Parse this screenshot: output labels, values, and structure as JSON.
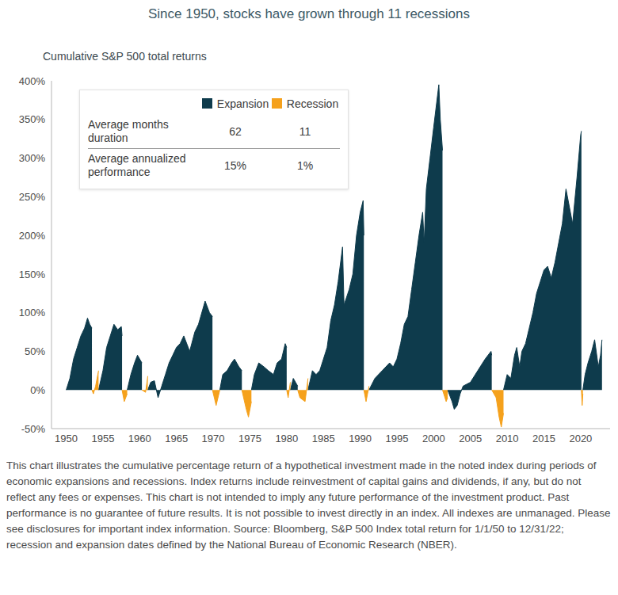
{
  "chart_data": {
    "type": "area",
    "title": "Since 1950, stocks have grown through 11 recessions",
    "subtitle": "Cumulative S&P 500 total returns",
    "table": {
      "rows": [
        {
          "label": "Average months duration",
          "values": [
            "62",
            "11"
          ]
        },
        {
          "label": "Average annualized performance",
          "values": [
            "15%",
            "1%"
          ]
        }
      ]
    },
    "note": "This chart illustrates the cumulative percentage return of a hypothetical investment made in the noted index during periods of economic expansions and recessions. Index returns include reinvestment of capital gains and dividends, if any, but do not reflect any fees or expenses. This chart is not intended to imply any future performance of the investment product. Past performance is no guarantee of future results. It is not possible to invest directly in an index. All indexes are unmanaged. Please see disclosures for important index information. Source: Bloomberg, S&P 500 Index total return for 1/1/50 to 12/31/22; recession and expansion dates defined by the National Bureau of Economic Research (NBER).",
    "grid": false,
    "xlim": [
      1948,
      2024
    ],
    "xticks": [
      1950,
      1955,
      1960,
      1965,
      1970,
      1975,
      1980,
      1985,
      1990,
      1995,
      2000,
      2005,
      2010,
      2015,
      2020
    ],
    "ylim": [
      -50,
      400
    ],
    "yticks": [
      {
        "value": -50,
        "label": "-50%"
      },
      {
        "value": 0,
        "label": "0%"
      },
      {
        "value": 50,
        "label": "50%"
      },
      {
        "value": 100,
        "label": "100%"
      },
      {
        "value": 150,
        "label": "150%"
      },
      {
        "value": 200,
        "label": "200%"
      },
      {
        "value": 250,
        "label": "250%"
      },
      {
        "value": 300,
        "label": "300%"
      },
      {
        "value": 350,
        "label": "350%"
      },
      {
        "value": 400,
        "label": "400%"
      }
    ],
    "x": [
      1950,
      1950.5,
      1951,
      1951.5,
      1952,
      1952.5,
      1952.9,
      1953.2,
      1953.5,
      1953.5,
      1953.7,
      1954,
      1954.4,
      1954.4,
      1955,
      1955.5,
      1956,
      1956.5,
      1957,
      1957.5,
      1957.6,
      1957.6,
      1957.9,
      1958.3,
      1958.3,
      1958.8,
      1959.3,
      1959.7,
      1960.3,
      1960.3,
      1960.8,
      1961.1,
      1961.1,
      1961.5,
      1962,
      1962.5,
      1963,
      1963.5,
      1964,
      1964.5,
      1965,
      1965.5,
      1966,
      1966.8,
      1967.5,
      1968,
      1968.9,
      1969.5,
      1969.9,
      1969.9,
      1970.4,
      1970.9,
      1970.9,
      1971.3,
      1971.9,
      1972.5,
      1972.9,
      1973.5,
      1973.9,
      1973.9,
      1974.5,
      1974.8,
      1975.2,
      1975.2,
      1975.6,
      1976.2,
      1976.9,
      1977.5,
      1978.2,
      1978.7,
      1979.3,
      1979.8,
      1980,
      1980,
      1980.2,
      1980.5,
      1980.5,
      1980.9,
      1981.2,
      1981.5,
      1981.5,
      1981.8,
      1982.5,
      1982.9,
      1982.9,
      1983.5,
      1984,
      1984.5,
      1985,
      1985.5,
      1986,
      1986.5,
      1987,
      1987.6,
      1987.8,
      1988.5,
      1989,
      1989.5,
      1990,
      1990.4,
      1990.5,
      1990.5,
      1990.8,
      1991.2,
      1991.2,
      1992,
      1993,
      1994,
      1994.5,
      1995,
      1995.5,
      1996,
      1996.5,
      1997,
      1997.5,
      1998,
      1998.5,
      1998.7,
      1999,
      1999.5,
      2000,
      2000.7,
      2000.9,
      2001.2,
      2001.2,
      2001.7,
      2001.9,
      2001.9,
      2002.5,
      2002.8,
      2003.2,
      2003.6,
      2004,
      2005,
      2006,
      2007,
      2007.8,
      2007.9,
      2007.9,
      2008.5,
      2008.9,
      2009.2,
      2009.5,
      2009.5,
      2010,
      2010.5,
      2011,
      2011.3,
      2011.7,
      2012,
      2012.5,
      2013,
      2013.5,
      2014,
      2014.5,
      2015,
      2015.5,
      2016,
      2016.5,
      2017,
      2017.5,
      2018,
      2018.9,
      2019.5,
      2020,
      2020.1,
      2020.1,
      2020.2,
      2020.3,
      2020.3,
      2020.6,
      2021,
      2021.5,
      2021.9,
      2022.4,
      2022.7,
      2022.9
    ],
    "series": [
      {
        "name": "Expansion",
        "color": "#0e3b4c",
        "values": [
          0,
          15,
          40,
          55,
          70,
          80,
          93,
          85,
          80,
          null,
          null,
          null,
          null,
          0,
          25,
          55,
          70,
          85,
          78,
          82,
          70,
          null,
          null,
          null,
          0,
          20,
          35,
          45,
          35,
          null,
          null,
          null,
          0,
          10,
          12,
          -10,
          5,
          20,
          35,
          45,
          55,
          60,
          70,
          50,
          75,
          85,
          115,
          100,
          95,
          null,
          null,
          null,
          0,
          20,
          25,
          35,
          40,
          30,
          25,
          null,
          null,
          null,
          null,
          0,
          20,
          35,
          30,
          25,
          20,
          35,
          40,
          60,
          55,
          null,
          null,
          null,
          0,
          15,
          10,
          5,
          null,
          null,
          null,
          null,
          0,
          25,
          20,
          25,
          40,
          55,
          90,
          110,
          140,
          185,
          110,
          130,
          150,
          200,
          230,
          245,
          200,
          null,
          null,
          null,
          0,
          15,
          25,
          35,
          30,
          40,
          60,
          85,
          95,
          130,
          165,
          200,
          230,
          190,
          260,
          300,
          340,
          395,
          350,
          310,
          null,
          null,
          null,
          0,
          -15,
          -25,
          -20,
          -5,
          5,
          10,
          25,
          40,
          50,
          45,
          null,
          null,
          null,
          null,
          null,
          0,
          20,
          15,
          45,
          55,
          30,
          50,
          60,
          80,
          100,
          125,
          140,
          155,
          160,
          145,
          165,
          190,
          215,
          260,
          215,
          275,
          330,
          335,
          null,
          null,
          null,
          0,
          20,
          35,
          50,
          65,
          30,
          45,
          65
        ]
      },
      {
        "name": "Recession",
        "color": "#f5a11c",
        "values": [
          null,
          null,
          null,
          null,
          null,
          null,
          null,
          null,
          null,
          0,
          -5,
          5,
          25,
          null,
          null,
          null,
          null,
          null,
          null,
          null,
          null,
          0,
          -15,
          -5,
          null,
          null,
          null,
          null,
          null,
          0,
          -3,
          18,
          null,
          null,
          null,
          null,
          null,
          null,
          null,
          null,
          null,
          null,
          null,
          null,
          null,
          null,
          null,
          null,
          null,
          0,
          -20,
          0,
          null,
          null,
          null,
          null,
          null,
          null,
          null,
          0,
          -25,
          -35,
          -15,
          null,
          null,
          null,
          null,
          null,
          null,
          null,
          null,
          null,
          null,
          0,
          -10,
          10,
          null,
          null,
          null,
          null,
          0,
          -10,
          -15,
          15,
          null,
          null,
          null,
          null,
          null,
          null,
          null,
          null,
          null,
          null,
          null,
          null,
          null,
          null,
          null,
          null,
          null,
          0,
          -15,
          5,
          null,
          null,
          null,
          null,
          null,
          null,
          null,
          null,
          null,
          null,
          null,
          null,
          null,
          null,
          null,
          null,
          null,
          null,
          null,
          null,
          0,
          -15,
          -10,
          null,
          null,
          null,
          null,
          null,
          null,
          null,
          null,
          null,
          null,
          null,
          0,
          -10,
          -35,
          -48,
          -30,
          null,
          null,
          null,
          null,
          null,
          null,
          null,
          null,
          null,
          null,
          null,
          null,
          null,
          null,
          null,
          null,
          null,
          null,
          null,
          null,
          null,
          null,
          null,
          0,
          -20,
          -5,
          null,
          null,
          null,
          null,
          null,
          null,
          null,
          null
        ]
      }
    ]
  }
}
